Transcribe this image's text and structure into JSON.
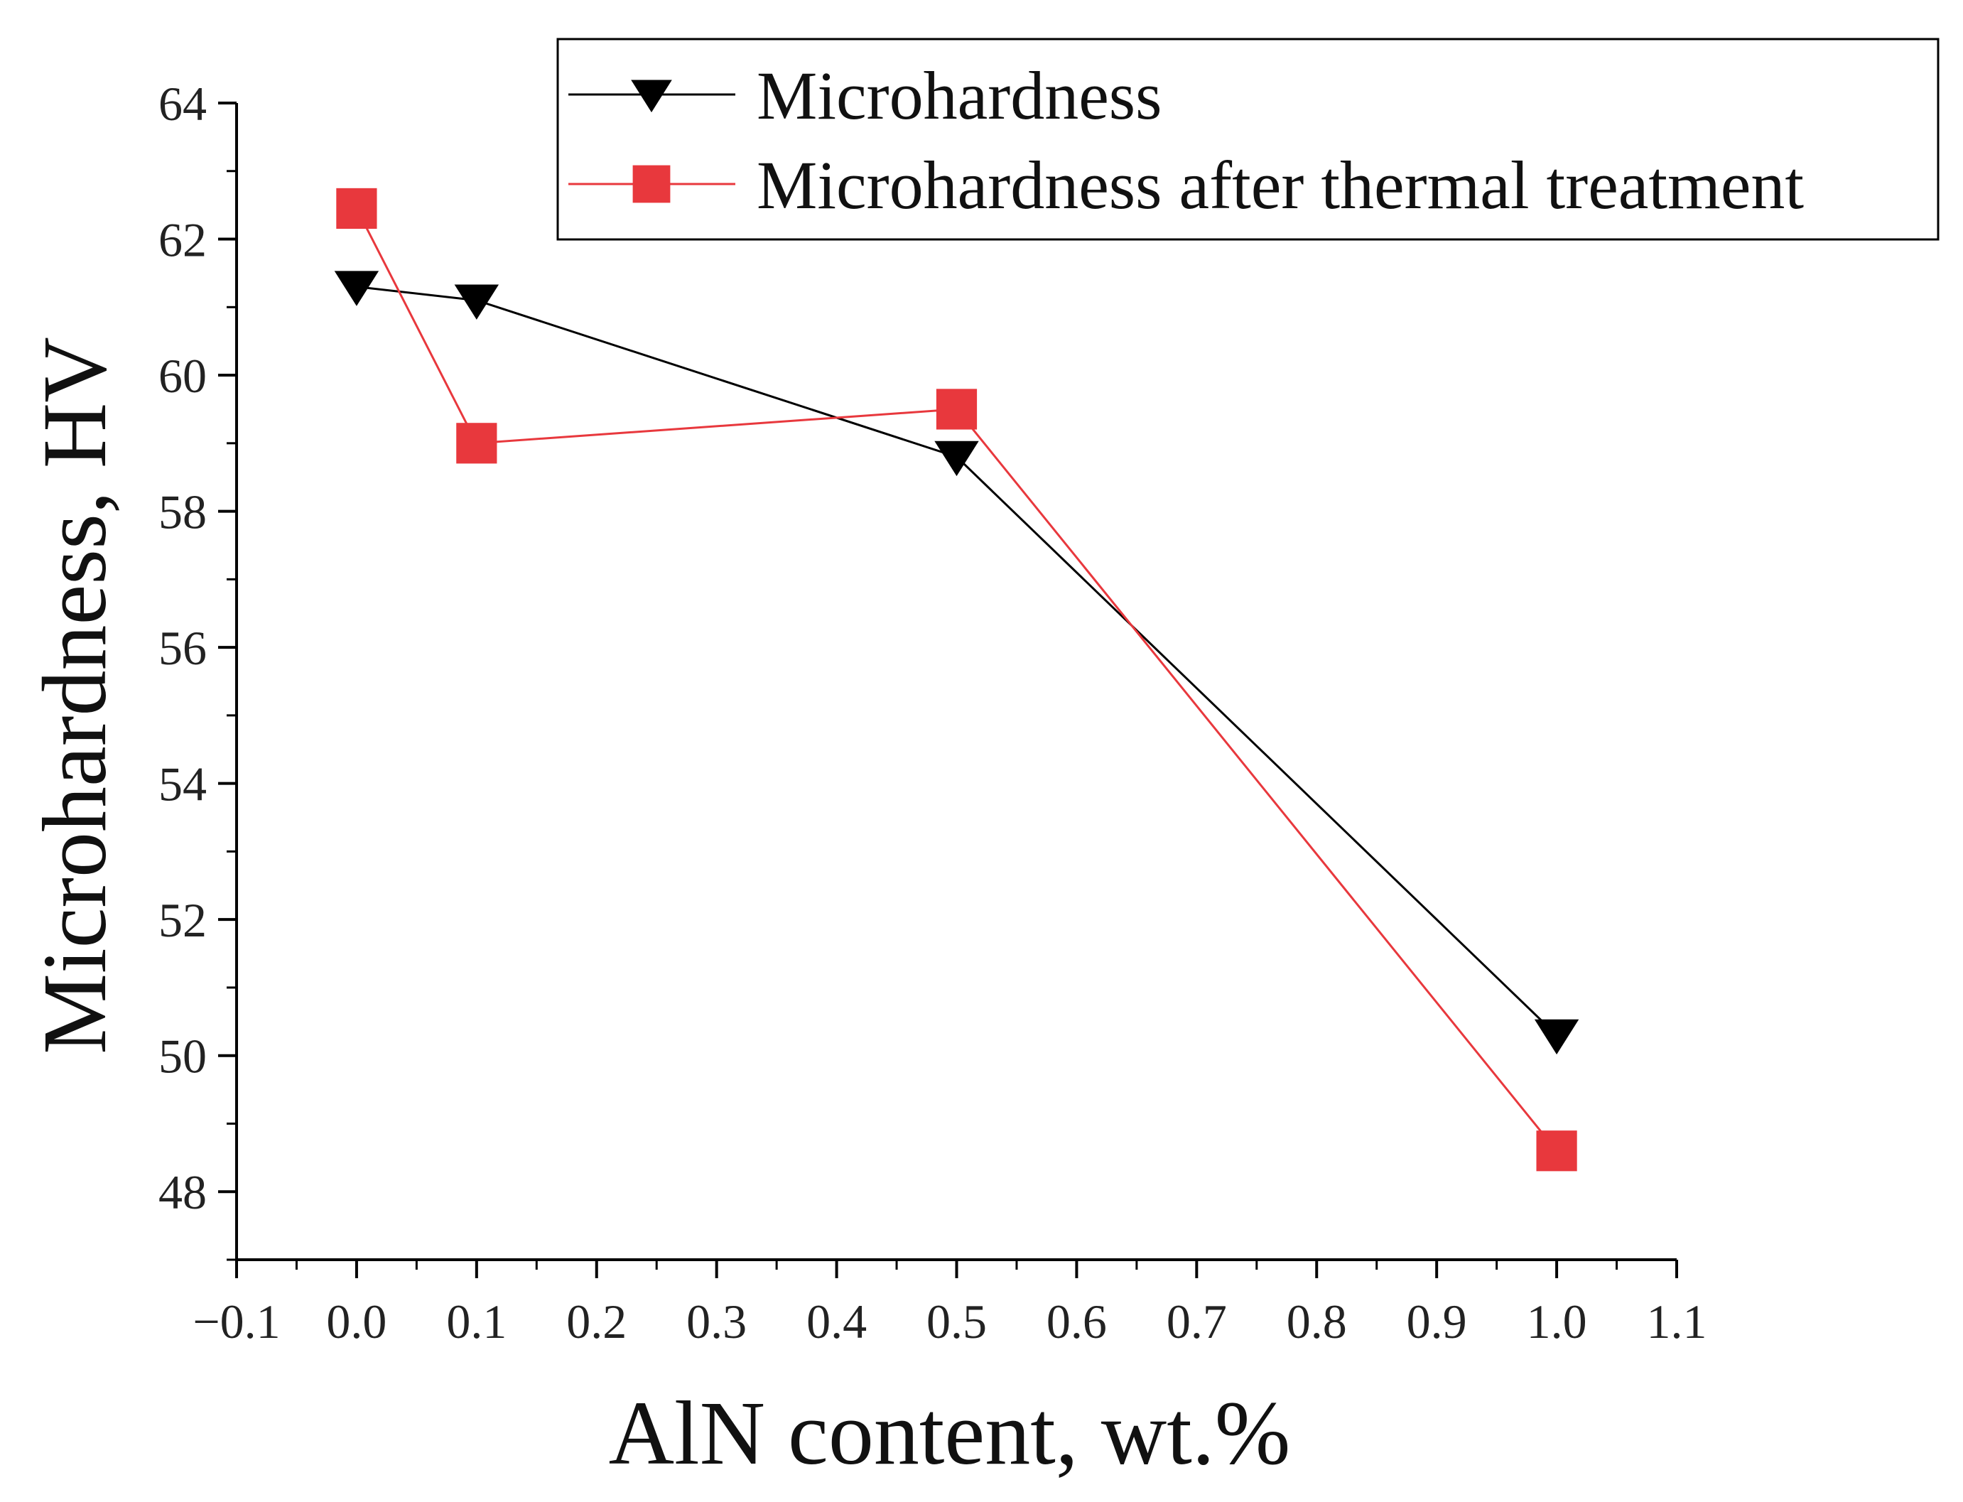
{
  "chart_data": {
    "type": "line",
    "title": "",
    "xlabel": "AlN content, wt.%",
    "ylabel": "Microhardness, HV",
    "xlim": [
      -0.1,
      1.1
    ],
    "ylim": [
      47,
      64
    ],
    "xticks": [
      "−0.1",
      "0.0",
      "0.1",
      "0.2",
      "0.3",
      "0.4",
      "0.5",
      "0.6",
      "0.7",
      "0.8",
      "0.9",
      "1.0",
      "1.1"
    ],
    "xtick_values": [
      -0.1,
      0.0,
      0.1,
      0.2,
      0.3,
      0.4,
      0.5,
      0.6,
      0.7,
      0.8,
      0.9,
      1.0,
      1.1
    ],
    "yticks": [
      "48",
      "50",
      "52",
      "54",
      "56",
      "58",
      "60",
      "62",
      "64"
    ],
    "ytick_values": [
      48,
      50,
      52,
      54,
      56,
      58,
      60,
      62,
      64
    ],
    "grid": false,
    "legend_position": "top-right",
    "series": [
      {
        "name": "Microhardness",
        "color": "#000000",
        "marker": "triangle-down",
        "x": [
          0.0,
          0.1,
          0.5,
          1.0
        ],
        "values": [
          61.3,
          61.1,
          58.8,
          50.3
        ]
      },
      {
        "name": "Microhardness after thermal treatment",
        "color": "#e8383d",
        "marker": "square",
        "x": [
          0.0,
          0.1,
          0.5,
          1.0
        ],
        "values": [
          62.45,
          59.0,
          59.5,
          48.6
        ]
      }
    ]
  }
}
